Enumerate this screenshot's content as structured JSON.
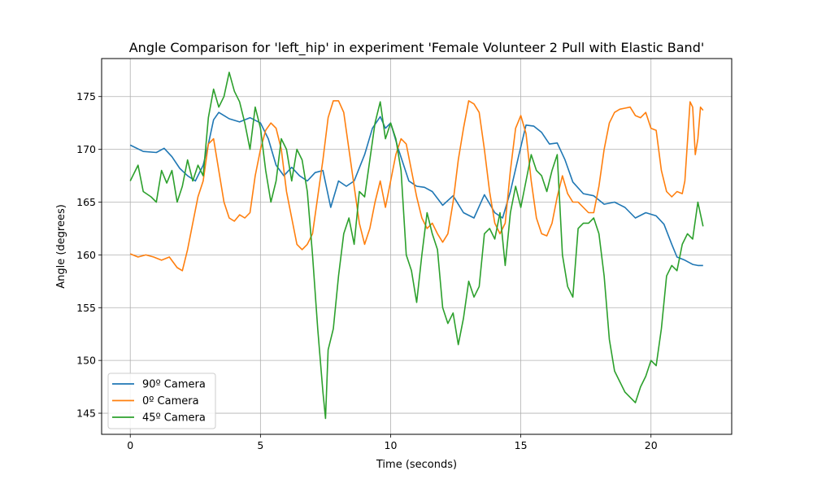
{
  "chart_data": {
    "type": "line",
    "title": "Angle Comparison for 'left_hip' in experiment 'Female Volunteer 2 Pull with Elastic Band'",
    "xlabel": "Time (seconds)",
    "ylabel": "Angle (degrees)",
    "xlim": [
      -1.1,
      23.1
    ],
    "ylim": [
      143.0,
      178.6
    ],
    "xticks": [
      0,
      5,
      10,
      15,
      20
    ],
    "yticks": [
      145,
      150,
      155,
      160,
      165,
      170,
      175
    ],
    "grid": true,
    "legend_position": "lower-left",
    "series": [
      {
        "name": "90º Camera",
        "color": "#1f77b4",
        "points": [
          [
            0,
            170.4
          ],
          [
            0.5,
            169.8
          ],
          [
            1.0,
            169.7
          ],
          [
            1.3,
            170.1
          ],
          [
            1.6,
            169.3
          ],
          [
            1.9,
            168.2
          ],
          [
            2.2,
            167.5
          ],
          [
            2.5,
            167.0
          ],
          [
            2.8,
            168.5
          ],
          [
            3.0,
            170.5
          ],
          [
            3.2,
            172.8
          ],
          [
            3.4,
            173.5
          ],
          [
            3.6,
            173.2
          ],
          [
            3.8,
            172.9
          ],
          [
            4.2,
            172.6
          ],
          [
            4.6,
            173.0
          ],
          [
            5.0,
            172.5
          ],
          [
            5.3,
            171.0
          ],
          [
            5.6,
            168.5
          ],
          [
            5.9,
            167.5
          ],
          [
            6.2,
            168.3
          ],
          [
            6.5,
            167.5
          ],
          [
            6.8,
            167.0
          ],
          [
            7.1,
            167.8
          ],
          [
            7.4,
            168.0
          ],
          [
            7.7,
            164.5
          ],
          [
            8.0,
            167.0
          ],
          [
            8.3,
            166.5
          ],
          [
            8.6,
            167.0
          ],
          [
            9.0,
            169.5
          ],
          [
            9.3,
            172.0
          ],
          [
            9.6,
            173.1
          ],
          [
            9.8,
            172.0
          ],
          [
            10.0,
            172.5
          ],
          [
            10.3,
            170.0
          ],
          [
            10.7,
            167.0
          ],
          [
            11.0,
            166.5
          ],
          [
            11.3,
            166.4
          ],
          [
            11.6,
            166.0
          ],
          [
            12.0,
            164.7
          ],
          [
            12.4,
            165.6
          ],
          [
            12.8,
            164.0
          ],
          [
            13.2,
            163.5
          ],
          [
            13.6,
            165.7
          ],
          [
            14.0,
            164.0
          ],
          [
            14.3,
            163.5
          ],
          [
            14.6,
            166.0
          ],
          [
            14.9,
            169.2
          ],
          [
            15.2,
            172.3
          ],
          [
            15.5,
            172.2
          ],
          [
            15.8,
            171.6
          ],
          [
            16.1,
            170.5
          ],
          [
            16.4,
            170.6
          ],
          [
            16.7,
            169.0
          ],
          [
            17.0,
            166.9
          ],
          [
            17.4,
            165.8
          ],
          [
            17.8,
            165.6
          ],
          [
            18.2,
            164.8
          ],
          [
            18.6,
            165.0
          ],
          [
            19.0,
            164.5
          ],
          [
            19.4,
            163.5
          ],
          [
            19.8,
            164.0
          ],
          [
            20.2,
            163.7
          ],
          [
            20.5,
            162.9
          ],
          [
            20.8,
            161.0
          ],
          [
            21.0,
            159.8
          ],
          [
            21.3,
            159.5
          ],
          [
            21.6,
            159.1
          ],
          [
            21.8,
            159.0
          ],
          [
            22.0,
            159.0
          ]
        ]
      },
      {
        "name": "0º Camera",
        "color": "#ff7f0e",
        "points": [
          [
            0,
            160.1
          ],
          [
            0.3,
            159.8
          ],
          [
            0.6,
            160.0
          ],
          [
            0.9,
            159.8
          ],
          [
            1.2,
            159.5
          ],
          [
            1.5,
            159.8
          ],
          [
            1.8,
            158.8
          ],
          [
            2.0,
            158.5
          ],
          [
            2.2,
            160.5
          ],
          [
            2.4,
            163.0
          ],
          [
            2.6,
            165.5
          ],
          [
            2.8,
            167.0
          ],
          [
            3.0,
            170.5
          ],
          [
            3.2,
            171.0
          ],
          [
            3.4,
            168.0
          ],
          [
            3.6,
            165.0
          ],
          [
            3.8,
            163.5
          ],
          [
            4.0,
            163.2
          ],
          [
            4.2,
            163.8
          ],
          [
            4.4,
            163.5
          ],
          [
            4.6,
            164.0
          ],
          [
            4.8,
            167.5
          ],
          [
            5.0,
            170.0
          ],
          [
            5.2,
            171.8
          ],
          [
            5.4,
            172.5
          ],
          [
            5.6,
            172.0
          ],
          [
            5.8,
            170.0
          ],
          [
            6.0,
            166.0
          ],
          [
            6.2,
            163.5
          ],
          [
            6.4,
            161.0
          ],
          [
            6.6,
            160.5
          ],
          [
            6.8,
            161.0
          ],
          [
            7.0,
            162.0
          ],
          [
            7.2,
            165.5
          ],
          [
            7.4,
            169.0
          ],
          [
            7.6,
            173.0
          ],
          [
            7.8,
            174.6
          ],
          [
            8.0,
            174.6
          ],
          [
            8.2,
            173.5
          ],
          [
            8.4,
            170.0
          ],
          [
            8.6,
            166.5
          ],
          [
            8.8,
            163.0
          ],
          [
            9.0,
            161.0
          ],
          [
            9.2,
            162.5
          ],
          [
            9.4,
            165.0
          ],
          [
            9.6,
            167.0
          ],
          [
            9.8,
            164.5
          ],
          [
            10.0,
            167.0
          ],
          [
            10.2,
            169.5
          ],
          [
            10.4,
            171.0
          ],
          [
            10.6,
            170.5
          ],
          [
            10.8,
            168.0
          ],
          [
            11.0,
            165.5
          ],
          [
            11.2,
            163.5
          ],
          [
            11.4,
            162.5
          ],
          [
            11.6,
            163.0
          ],
          [
            11.8,
            162.0
          ],
          [
            12.0,
            161.2
          ],
          [
            12.2,
            162.0
          ],
          [
            12.4,
            165.0
          ],
          [
            12.6,
            169.0
          ],
          [
            12.8,
            172.0
          ],
          [
            13.0,
            174.6
          ],
          [
            13.2,
            174.3
          ],
          [
            13.4,
            173.5
          ],
          [
            13.6,
            170.0
          ],
          [
            13.8,
            166.0
          ],
          [
            14.0,
            163.0
          ],
          [
            14.2,
            162.0
          ],
          [
            14.4,
            163.0
          ],
          [
            14.6,
            168.0
          ],
          [
            14.8,
            172.0
          ],
          [
            15.0,
            173.2
          ],
          [
            15.2,
            171.5
          ],
          [
            15.4,
            167.0
          ],
          [
            15.6,
            163.5
          ],
          [
            15.8,
            162.0
          ],
          [
            16.0,
            161.8
          ],
          [
            16.2,
            163.0
          ],
          [
            16.4,
            165.5
          ],
          [
            16.6,
            167.5
          ],
          [
            16.8,
            165.8
          ],
          [
            17.0,
            165.0
          ],
          [
            17.2,
            165.0
          ],
          [
            17.4,
            164.5
          ],
          [
            17.6,
            164.0
          ],
          [
            17.8,
            164.0
          ],
          [
            18.0,
            166.5
          ],
          [
            18.2,
            170.0
          ],
          [
            18.4,
            172.5
          ],
          [
            18.6,
            173.5
          ],
          [
            18.8,
            173.8
          ],
          [
            19.0,
            173.9
          ],
          [
            19.2,
            174.0
          ],
          [
            19.4,
            173.2
          ],
          [
            19.6,
            173.0
          ],
          [
            19.8,
            173.5
          ],
          [
            20.0,
            172.0
          ],
          [
            20.2,
            171.8
          ],
          [
            20.4,
            168.0
          ],
          [
            20.6,
            166.0
          ],
          [
            20.8,
            165.5
          ],
          [
            21.0,
            166.0
          ],
          [
            21.2,
            165.8
          ],
          [
            21.3,
            167.0
          ],
          [
            21.5,
            174.5
          ],
          [
            21.6,
            174.0
          ],
          [
            21.7,
            169.5
          ],
          [
            21.8,
            171.0
          ],
          [
            21.9,
            174.0
          ],
          [
            22.0,
            173.7
          ]
        ]
      },
      {
        "name": "45º Camera",
        "color": "#2ca02c",
        "points": [
          [
            0,
            167.0
          ],
          [
            0.3,
            168.5
          ],
          [
            0.5,
            166.0
          ],
          [
            0.8,
            165.5
          ],
          [
            1.0,
            165.0
          ],
          [
            1.2,
            168.0
          ],
          [
            1.4,
            166.8
          ],
          [
            1.6,
            168.0
          ],
          [
            1.8,
            165.0
          ],
          [
            2.0,
            166.5
          ],
          [
            2.2,
            169.0
          ],
          [
            2.4,
            167.0
          ],
          [
            2.6,
            168.5
          ],
          [
            2.8,
            167.5
          ],
          [
            3.0,
            173.0
          ],
          [
            3.2,
            175.7
          ],
          [
            3.4,
            174.0
          ],
          [
            3.6,
            175.0
          ],
          [
            3.8,
            177.3
          ],
          [
            4.0,
            175.5
          ],
          [
            4.2,
            174.5
          ],
          [
            4.4,
            172.5
          ],
          [
            4.6,
            170.0
          ],
          [
            4.8,
            174.0
          ],
          [
            5.0,
            172.0
          ],
          [
            5.2,
            168.0
          ],
          [
            5.4,
            165.0
          ],
          [
            5.6,
            167.0
          ],
          [
            5.8,
            171.0
          ],
          [
            6.0,
            170.0
          ],
          [
            6.2,
            167.0
          ],
          [
            6.4,
            170.0
          ],
          [
            6.6,
            169.0
          ],
          [
            6.8,
            166.0
          ],
          [
            7.0,
            160.0
          ],
          [
            7.2,
            153.0
          ],
          [
            7.4,
            147.0
          ],
          [
            7.5,
            144.5
          ],
          [
            7.6,
            151.0
          ],
          [
            7.8,
            153.0
          ],
          [
            8.0,
            158.0
          ],
          [
            8.2,
            162.0
          ],
          [
            8.4,
            163.5
          ],
          [
            8.6,
            161.0
          ],
          [
            8.8,
            166.0
          ],
          [
            9.0,
            165.5
          ],
          [
            9.2,
            169.0
          ],
          [
            9.4,
            172.5
          ],
          [
            9.6,
            174.5
          ],
          [
            9.8,
            171.0
          ],
          [
            10.0,
            172.5
          ],
          [
            10.2,
            171.0
          ],
          [
            10.4,
            168.0
          ],
          [
            10.6,
            160.0
          ],
          [
            10.8,
            158.5
          ],
          [
            11.0,
            155.5
          ],
          [
            11.2,
            160.0
          ],
          [
            11.4,
            164.0
          ],
          [
            11.6,
            162.0
          ],
          [
            11.8,
            160.5
          ],
          [
            12.0,
            155.0
          ],
          [
            12.2,
            153.5
          ],
          [
            12.4,
            154.5
          ],
          [
            12.6,
            151.5
          ],
          [
            12.8,
            154.0
          ],
          [
            13.0,
            157.5
          ],
          [
            13.2,
            156.0
          ],
          [
            13.4,
            157.0
          ],
          [
            13.6,
            162.0
          ],
          [
            13.8,
            162.5
          ],
          [
            14.0,
            161.5
          ],
          [
            14.2,
            164.0
          ],
          [
            14.4,
            159.0
          ],
          [
            14.6,
            164.0
          ],
          [
            14.8,
            166.5
          ],
          [
            15.0,
            164.5
          ],
          [
            15.2,
            167.0
          ],
          [
            15.4,
            169.5
          ],
          [
            15.6,
            168.0
          ],
          [
            15.8,
            167.5
          ],
          [
            16.0,
            166.0
          ],
          [
            16.2,
            168.0
          ],
          [
            16.4,
            169.5
          ],
          [
            16.6,
            160.0
          ],
          [
            16.8,
            157.0
          ],
          [
            17.0,
            156.0
          ],
          [
            17.2,
            162.5
          ],
          [
            17.4,
            163.0
          ],
          [
            17.6,
            163.0
          ],
          [
            17.8,
            163.5
          ],
          [
            18.0,
            162.0
          ],
          [
            18.2,
            158.0
          ],
          [
            18.4,
            152.0
          ],
          [
            18.6,
            149.0
          ],
          [
            18.8,
            148.0
          ],
          [
            19.0,
            147.0
          ],
          [
            19.2,
            146.5
          ],
          [
            19.4,
            146.0
          ],
          [
            19.6,
            147.5
          ],
          [
            19.8,
            148.5
          ],
          [
            20.0,
            150.0
          ],
          [
            20.2,
            149.5
          ],
          [
            20.4,
            153.0
          ],
          [
            20.6,
            158.0
          ],
          [
            20.8,
            159.0
          ],
          [
            21.0,
            158.5
          ],
          [
            21.2,
            161.0
          ],
          [
            21.4,
            162.0
          ],
          [
            21.6,
            161.5
          ],
          [
            21.8,
            165.0
          ],
          [
            22.0,
            162.7
          ]
        ]
      }
    ]
  }
}
